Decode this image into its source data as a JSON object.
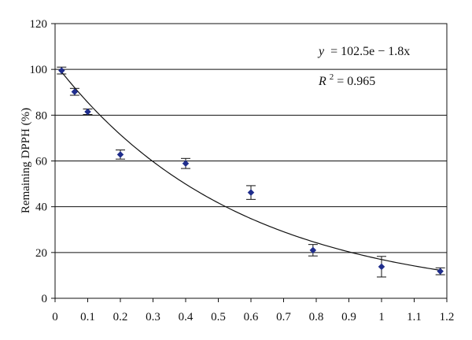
{
  "chart_data": {
    "type": "scatter",
    "title": "",
    "xlabel": "",
    "ylabel": "Remaining DPPH (%)",
    "xlim": [
      0,
      1.2
    ],
    "ylim": [
      0,
      120
    ],
    "x_ticks": [
      "0",
      "0.1",
      "0.2",
      "0.3",
      "0.4",
      "0.5",
      "0.6",
      "0.7",
      "0.8",
      "0.9",
      "1",
      "1.1",
      "1.2"
    ],
    "y_ticks": [
      "0",
      "20",
      "40",
      "60",
      "80",
      "100",
      "120"
    ],
    "horizontal_grid": true,
    "series": [
      {
        "points": [
          {
            "x": 0.02,
            "y": 99.5,
            "err": 1.5
          },
          {
            "x": 0.06,
            "y": 90.2,
            "err": 1.5
          },
          {
            "x": 0.1,
            "y": 81.5,
            "err": 1.2
          },
          {
            "x": 0.2,
            "y": 62.8,
            "err": 2.0
          },
          {
            "x": 0.4,
            "y": 58.9,
            "err": 2.2
          },
          {
            "x": 0.6,
            "y": 46.2,
            "err": 3.0
          },
          {
            "x": 0.79,
            "y": 21.0,
            "err": 2.5
          },
          {
            "x": 1.0,
            "y": 13.8,
            "err": 4.5
          },
          {
            "x": 1.18,
            "y": 11.8,
            "err": 1.5
          }
        ],
        "marker_color": "#1f2d8c"
      }
    ],
    "fit": {
      "type": "exponential",
      "a": 102.5,
      "b": -1.8,
      "x_range": [
        0.02,
        1.18
      ],
      "color": "#111111"
    },
    "annotations": {
      "equation_lhs": "y",
      "equation_rhs": "= 102.5e − 1.8x",
      "r2_label": "R",
      "r2_sup": "2",
      "r2_value": " = 0.965"
    }
  }
}
